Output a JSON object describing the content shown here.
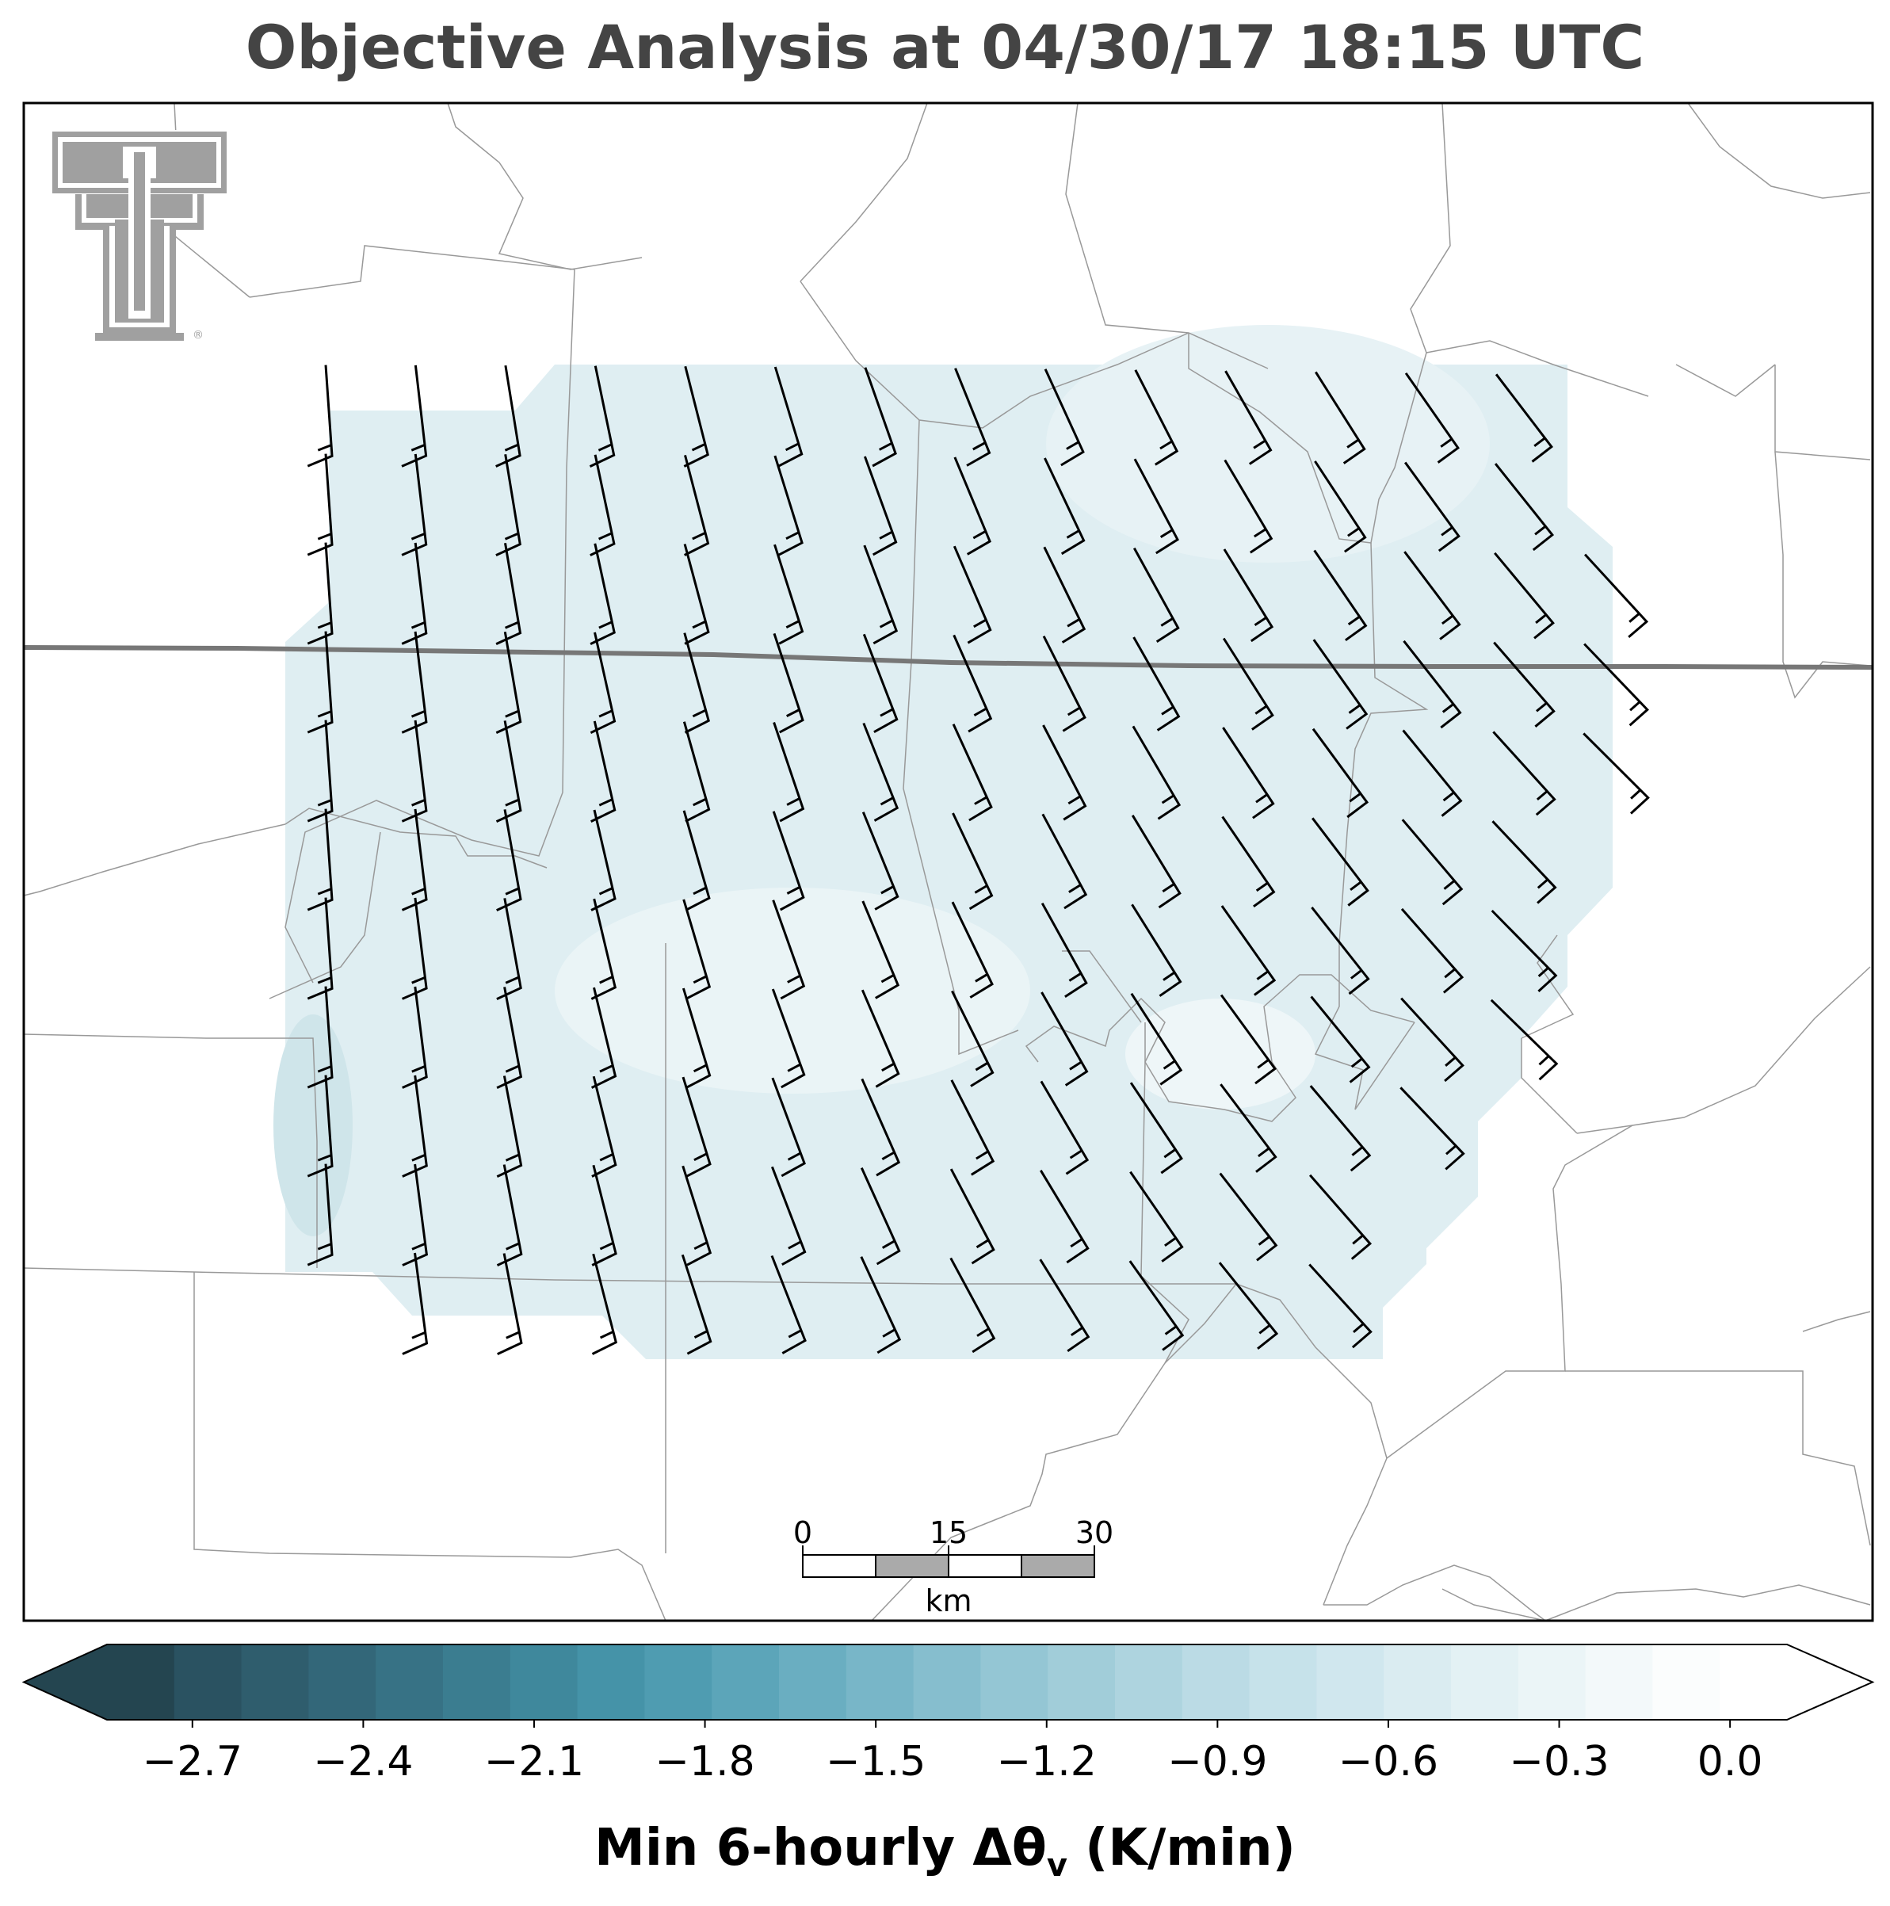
{
  "title": "Objective Analysis at 04/30/17 18:15 UTC",
  "colorbar": {
    "label_main": "Min 6-hourly Δθ",
    "label_sub": "v",
    "label_units": " (K/min)",
    "ticks": [
      "−2.7",
      "−2.4",
      "−2.1",
      "−1.8",
      "−1.5",
      "−1.2",
      "−0.9",
      "−0.6",
      "−0.3",
      "0.0"
    ],
    "tick_values": [
      -2.7,
      -2.4,
      -2.1,
      -1.8,
      -1.5,
      -1.2,
      -0.9,
      -0.6,
      -0.3,
      0.0
    ],
    "range": [
      -2.85,
      0.1
    ],
    "level_step": 0.1,
    "extend": "both",
    "colors_dark_to_light": [
      "#244550",
      "#2a5261",
      "#2f5d6d",
      "#336779",
      "#377285",
      "#3b7d90",
      "#3f889c",
      "#4593a8",
      "#4f9cb1",
      "#5ca5b9",
      "#6aaec1",
      "#78b6c8",
      "#86bece",
      "#94c6d4",
      "#a1cdd9",
      "#aed4df",
      "#bbdbe5",
      "#c6e2ea",
      "#d0e7ee",
      "#daecf1",
      "#e3f1f4",
      "#ebf5f7",
      "#f3f9fa",
      "#fbfdfd",
      "#ffffff"
    ]
  },
  "scale_bar": {
    "labels": [
      "0",
      "15",
      "30"
    ],
    "unit": "km"
  },
  "logo": {
    "name": "Texas Tech Double T",
    "registered": "®"
  },
  "field": {
    "fill_color": "#dfeef2",
    "value_range": [
      -0.6,
      -0.2
    ]
  },
  "map": {
    "state_border_color": "#777777",
    "county_line_color": "#999999",
    "barb_color": "#000000"
  }
}
